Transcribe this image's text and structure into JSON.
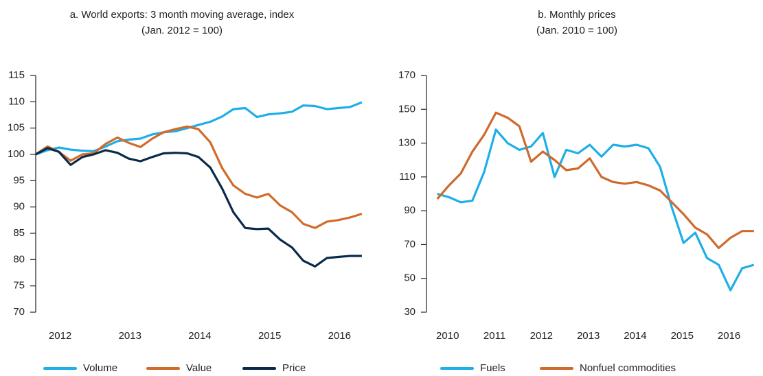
{
  "chart_data": [
    {
      "type": "line",
      "title": "a. World exports: 3 month moving average, index",
      "subtitle": "(Jan. 2012 = 100)",
      "x": [
        2012,
        2012.17,
        2012.33,
        2012.5,
        2012.67,
        2012.83,
        2013,
        2013.17,
        2013.33,
        2013.5,
        2013.67,
        2013.83,
        2014,
        2014.17,
        2014.33,
        2014.5,
        2014.67,
        2014.83,
        2015,
        2015.17,
        2015.33,
        2015.5,
        2015.67,
        2015.83,
        2016,
        2016.17,
        2016.33,
        2016.5,
        2016.67
      ],
      "series": [
        {
          "name": "Volume",
          "color": "#1eaee8",
          "values": [
            100,
            100.8,
            101.3,
            100.9,
            100.7,
            100.6,
            101.5,
            102.5,
            102.8,
            103,
            103.8,
            104.2,
            104.4,
            105,
            105.6,
            106.2,
            107.2,
            108.6,
            108.8,
            107.1,
            107.6,
            107.8,
            108.1,
            109.3,
            109.2,
            108.6,
            108.8,
            109,
            109.9
          ]
        },
        {
          "name": "Value",
          "color": "#d26b2a",
          "values": [
            100,
            101.5,
            100.5,
            98.8,
            100,
            100.2,
            102,
            103.2,
            102.2,
            101.4,
            103,
            104.2,
            104.8,
            105.3,
            104.8,
            102.3,
            97.4,
            94.1,
            92.5,
            91.8,
            92.5,
            90.3,
            89,
            86.8,
            86,
            87.2,
            87.5,
            88,
            88.7
          ]
        },
        {
          "name": "Price",
          "color": "#0a2a4a",
          "values": [
            100,
            101.2,
            100.5,
            98,
            99.5,
            100,
            100.8,
            100.3,
            99.2,
            98.7,
            99.5,
            100.2,
            100.3,
            100.2,
            99.5,
            97.5,
            93.5,
            89,
            86,
            85.8,
            85.9,
            83.8,
            82.3,
            79.8,
            78.7,
            80.3,
            80.5,
            80.7,
            80.7
          ]
        }
      ],
      "xlim": [
        2012,
        2016.75
      ],
      "xticks": [
        {
          "value": 2012.35,
          "label": "2012"
        },
        {
          "value": 2013.35,
          "label": "2013"
        },
        {
          "value": 2014.35,
          "label": "2014"
        },
        {
          "value": 2015.35,
          "label": "2015"
        },
        {
          "value": 2016.35,
          "label": "2016"
        }
      ],
      "ylim": [
        70,
        115
      ],
      "yticks": [
        70,
        75,
        80,
        85,
        90,
        95,
        100,
        105,
        110,
        115
      ],
      "grid": false
    },
    {
      "type": "line",
      "title": "b. Monthly prices",
      "subtitle": "(Jan. 2010 = 100)",
      "x": [
        2010,
        2010.25,
        2010.5,
        2010.75,
        2011,
        2011.25,
        2011.5,
        2011.75,
        2012,
        2012.25,
        2012.5,
        2012.75,
        2013,
        2013.25,
        2013.5,
        2013.75,
        2014,
        2014.25,
        2014.5,
        2014.75,
        2015,
        2015.25,
        2015.5,
        2015.75,
        2016,
        2016.25,
        2016.5,
        2016.75
      ],
      "series": [
        {
          "name": "Fuels",
          "color": "#1eaee8",
          "values": [
            100,
            98,
            95,
            96,
            113,
            138,
            130,
            126,
            128,
            136,
            110,
            126,
            124,
            129,
            122,
            129,
            128,
            129,
            127,
            116,
            92,
            71,
            77,
            62,
            58,
            43,
            56,
            58
          ]
        },
        {
          "name": "Nonfuel commodities",
          "color": "#d0692c",
          "values": [
            97,
            105,
            112,
            125,
            135,
            148,
            145,
            140,
            119,
            125,
            120,
            114,
            115,
            121,
            110,
            107,
            106,
            107,
            105,
            102,
            95,
            88,
            80,
            76,
            68,
            74,
            78,
            78
          ]
        }
      ],
      "xlim": [
        2009.77,
        2016.9
      ],
      "xticks": [
        {
          "value": 2010.22,
          "label": "2010"
        },
        {
          "value": 2011.22,
          "label": "2011"
        },
        {
          "value": 2012.22,
          "label": "2012"
        },
        {
          "value": 2013.22,
          "label": "2013"
        },
        {
          "value": 2014.22,
          "label": "2014"
        },
        {
          "value": 2015.22,
          "label": "2015"
        },
        {
          "value": 2016.22,
          "label": "2016"
        }
      ],
      "ylim": [
        30,
        170
      ],
      "yticks": [
        30,
        50,
        70,
        90,
        110,
        130,
        150,
        170
      ],
      "grid": false
    }
  ]
}
